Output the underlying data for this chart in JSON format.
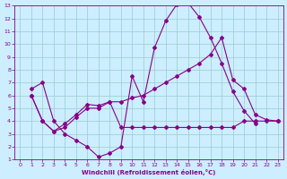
{
  "background_color": "#cceeff",
  "grid_color": "#99cccc",
  "line_color": "#880088",
  "xlabel": "Windchill (Refroidissement éolien,°C)",
  "xlim": [
    -0.5,
    23.5
  ],
  "ylim": [
    1,
    13
  ],
  "xticks": [
    0,
    1,
    2,
    3,
    4,
    5,
    6,
    7,
    8,
    9,
    10,
    11,
    12,
    13,
    14,
    15,
    16,
    17,
    18,
    19,
    20,
    21,
    22,
    23
  ],
  "yticks": [
    1,
    2,
    3,
    4,
    5,
    6,
    7,
    8,
    9,
    10,
    11,
    12,
    13
  ],
  "series": [
    {
      "x": [
        1,
        2,
        3,
        4,
        5,
        6,
        7,
        8,
        9,
        10,
        11,
        12,
        13,
        14,
        15,
        16,
        17,
        18,
        19,
        20,
        21
      ],
      "y": [
        6.5,
        7.0,
        4.0,
        3.0,
        2.5,
        2.0,
        1.2,
        1.5,
        2.0,
        7.5,
        5.5,
        9.7,
        11.8,
        13.1,
        13.2,
        12.1,
        10.5,
        8.5,
        6.3,
        4.8,
        3.8
      ]
    },
    {
      "x": [
        1,
        2,
        3,
        4,
        5,
        6,
        7,
        8,
        9,
        10,
        11,
        12,
        13,
        14,
        15,
        16,
        17,
        18,
        19,
        20,
        21,
        22,
        23
      ],
      "y": [
        6.0,
        4.0,
        3.2,
        3.8,
        4.5,
        5.3,
        5.2,
        5.5,
        5.5,
        5.8,
        6.0,
        6.5,
        7.0,
        7.5,
        8.0,
        8.5,
        9.2,
        10.5,
        7.2,
        6.5,
        4.5,
        4.1,
        4.0
      ]
    },
    {
      "x": [
        1,
        2,
        3,
        4,
        5,
        6,
        7,
        8,
        9,
        10,
        11,
        12,
        13,
        14,
        15,
        16,
        17,
        18,
        19,
        20,
        21,
        22,
        23
      ],
      "y": [
        6.0,
        4.0,
        3.2,
        3.5,
        4.3,
        5.0,
        5.0,
        5.5,
        3.5,
        3.5,
        3.5,
        3.5,
        3.5,
        3.5,
        3.5,
        3.5,
        3.5,
        3.5,
        3.5,
        4.0,
        4.0,
        4.0,
        4.0
      ]
    }
  ]
}
